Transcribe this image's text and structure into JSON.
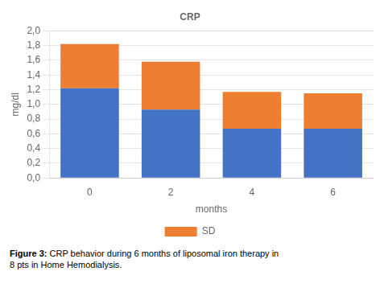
{
  "chart_data": {
    "type": "bar",
    "stacked": true,
    "title": "CRP",
    "ylabel": "mg/dl",
    "xlabel": "months",
    "categories": [
      0,
      2,
      4,
      6
    ],
    "series": [
      {
        "color": "#4472C4",
        "values": [
          1.22,
          0.93,
          0.67,
          0.67
        ]
      },
      {
        "name": "SD",
        "color": "#ED7D31",
        "values": [
          0.6,
          0.65,
          0.5,
          0.48
        ]
      }
    ],
    "ylim": [
      0.0,
      2.0
    ],
    "yticks": [
      {
        "value": 0.0,
        "label": "0,0"
      },
      {
        "value": 0.2,
        "label": "0,2"
      },
      {
        "value": 0.4,
        "label": "0,4"
      },
      {
        "value": 0.6,
        "label": "0,6"
      },
      {
        "value": 0.8,
        "label": "0,8"
      },
      {
        "value": 1.0,
        "label": "1,0"
      },
      {
        "value": 1.2,
        "label": "1,2"
      },
      {
        "value": 1.4,
        "label": "1,4"
      },
      {
        "value": 1.6,
        "label": "1,6"
      },
      {
        "value": 1.8,
        "label": "1,8"
      },
      {
        "value": 2.0,
        "label": "2,0"
      }
    ],
    "grid": true,
    "legend": "bottom",
    "caption": [
      "Figure 3:",
      " CRP behavior during 6 months of liposomal iron therapy in\n8 pts in Home Hemodialysis."
    ]
  }
}
